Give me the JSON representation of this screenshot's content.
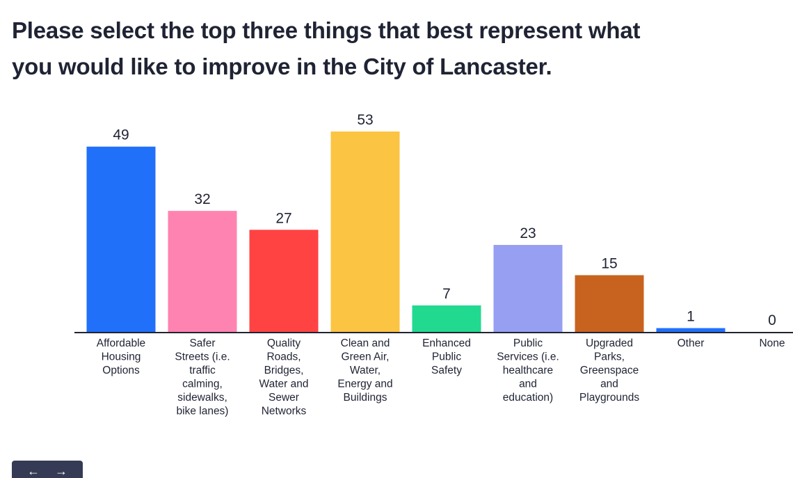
{
  "chart_data": {
    "type": "bar",
    "title": "Please select the top three things that best represent what you would like to improve in the City of Lancaster.",
    "title_lines": [
      "Please select the top three things that best represent what",
      "you would like to improve in the City of Lancaster."
    ],
    "categories": [
      [
        "Affordable",
        "Housing",
        "Options"
      ],
      [
        "Safer",
        "Streets (i.e.",
        "traffic",
        "calming,",
        "sidewalks,",
        "bike lanes)"
      ],
      [
        "Quality",
        "Roads,",
        "Bridges,",
        "Water and",
        "Sewer",
        "Networks"
      ],
      [
        "Clean and",
        "Green Air,",
        "Water,",
        "Energy and",
        "Buildings"
      ],
      [
        "Enhanced",
        "Public",
        "Safety"
      ],
      [
        "Public",
        "Services (i.e.",
        "healthcare",
        "and",
        "education)"
      ],
      [
        "Upgraded",
        "Parks,",
        "Greenspace",
        "and",
        "Playgrounds"
      ],
      [
        "Other"
      ],
      [
        "None"
      ]
    ],
    "values": [
      49,
      32,
      27,
      53,
      7,
      23,
      15,
      1,
      0
    ],
    "colors": [
      "#2170fa",
      "#ff83b0",
      "#ff4343",
      "#fcc443",
      "#22d990",
      "#979ff2",
      "#c8631f",
      "#2170fa",
      "#2170fa"
    ],
    "ylim": [
      0,
      53
    ],
    "grid": false,
    "legend": "none",
    "xlabel": "",
    "ylabel": ""
  },
  "nav": {
    "prev_icon": "arrow-left-icon",
    "next_icon": "arrow-right-icon",
    "prev": "←",
    "next": "→",
    "color": "#353b55"
  }
}
